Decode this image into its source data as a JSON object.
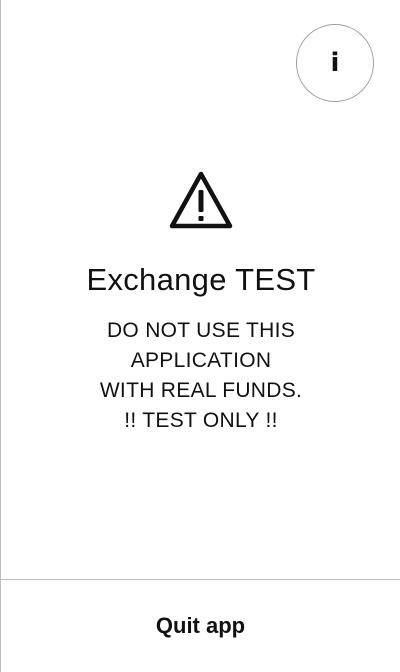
{
  "info_button": {
    "icon": "info-icon",
    "glyph": "i"
  },
  "warning": {
    "icon": "warning-triangle-icon",
    "title": "Exchange TEST",
    "message_lines": [
      "DO NOT USE THIS",
      "APPLICATION",
      "WITH REAL FUNDS.",
      "!! TEST ONLY !!"
    ]
  },
  "footer": {
    "quit_label": "Quit app"
  },
  "colors": {
    "background": "#ffffff",
    "text": "#111111",
    "divider": "#bdbdbd",
    "button_border": "#9e9e9e"
  }
}
